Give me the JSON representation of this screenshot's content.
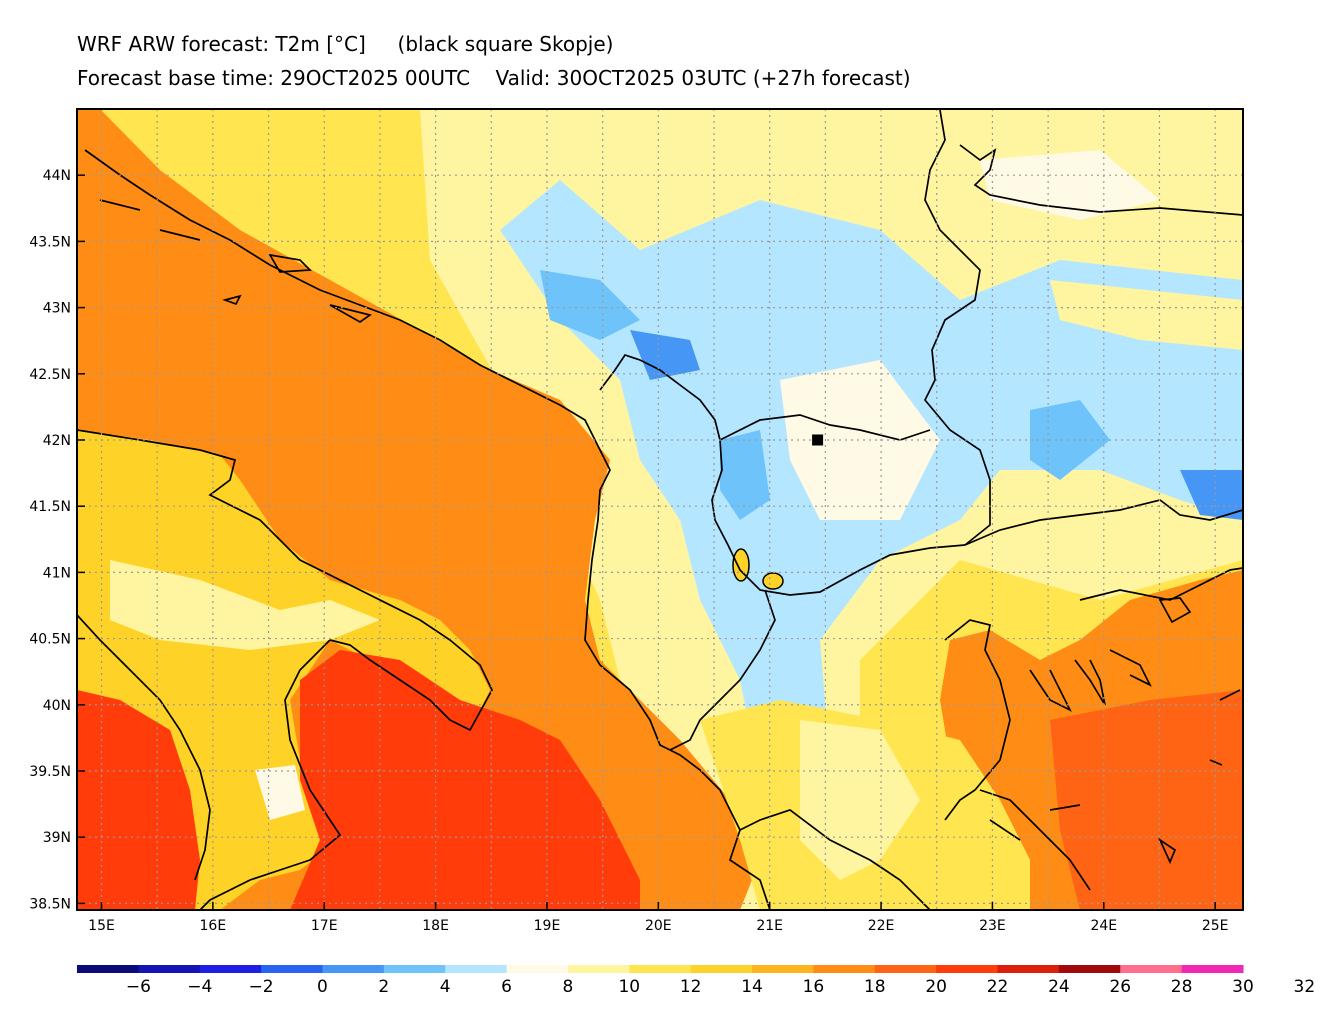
{
  "title_line1": "WRF ARW forecast: T2m [°C]     (black square Skopje)",
  "title_line2": "Forecast base time: 29OCT2025 00UTC    Valid: 30OCT2025 03UTC (+27h forecast)",
  "marker": {
    "name": "Skopje",
    "lon": 21.43,
    "lat": 42.0
  },
  "map": {
    "lon_range": [
      14.78,
      25.25
    ],
    "lat_range": [
      38.45,
      44.5
    ],
    "lon_ticks": [
      "15E",
      "16E",
      "17E",
      "18E",
      "19E",
      "20E",
      "21E",
      "22E",
      "23E",
      "24E",
      "25E"
    ],
    "lat_ticks": [
      "44N",
      "43.5N",
      "43N",
      "42.5N",
      "42N",
      "41.5N",
      "41N",
      "40.5N",
      "40N",
      "39.5N",
      "39N",
      "38.5N"
    ]
  },
  "colorbar": {
    "colors": [
      "#0a0a78",
      "#1414b4",
      "#1e1ee6",
      "#2864f0",
      "#4696f5",
      "#6ec3fa",
      "#b4e6ff",
      "#fffae6",
      "#fff5a0",
      "#ffe650",
      "#ffd228",
      "#ffb41e",
      "#ff8c14",
      "#ff6414",
      "#ff3c0a",
      "#dc1e0a",
      "#a00a0a",
      "#ff6e8c",
      "#f028b4"
    ],
    "labels": [
      "−6",
      "−4",
      "−2",
      "0",
      "2",
      "4",
      "6",
      "8",
      "10",
      "12",
      "14",
      "16",
      "18",
      "20",
      "22",
      "24",
      "26",
      "28",
      "30",
      "32"
    ]
  }
}
